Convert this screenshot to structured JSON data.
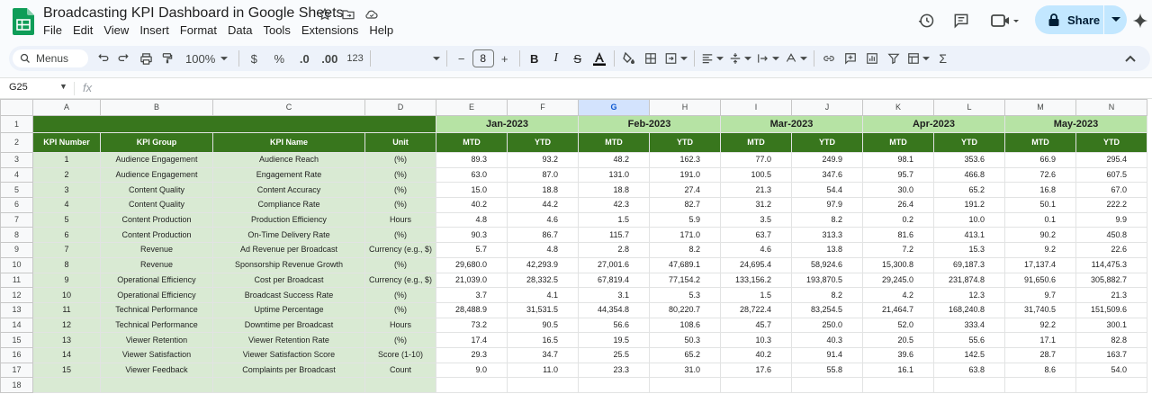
{
  "doc": {
    "title": "Broadcasting KPI Dashboard in Google Sheets",
    "menus": [
      "File",
      "Edit",
      "View",
      "Insert",
      "Format",
      "Data",
      "Tools",
      "Extensions",
      "Help"
    ],
    "share_label": "Share"
  },
  "toolbar": {
    "menus_label": "Menus",
    "zoom": "100%",
    "currency": "$",
    "percent": "%",
    "dec_decrease": ".0",
    "dec_increase": ".00",
    "number_format": "123",
    "font_size": "8",
    "minus": "−",
    "plus": "+"
  },
  "formula_bar": {
    "cell_ref": "G25",
    "fx": "fx",
    "value": ""
  },
  "colors": {
    "header_green": "#38761d",
    "month_green": "#b6e3a4",
    "label_green": "#d9ead3",
    "share_blue": "#c2e7ff"
  },
  "columns": [
    "A",
    "B",
    "C",
    "D",
    "E",
    "F",
    "G",
    "H",
    "I",
    "J",
    "K",
    "L",
    "M",
    "N"
  ],
  "selected_column": "G",
  "row_numbers": [
    "1",
    "2",
    "3",
    "4",
    "5",
    "6",
    "7",
    "8",
    "9",
    "10",
    "11",
    "12",
    "13",
    "14",
    "15",
    "16",
    "17",
    "18"
  ],
  "months": [
    "Jan-2023",
    "Feb-2023",
    "Mar-2023",
    "Apr-2023",
    "May-2023"
  ],
  "header": {
    "kpi_number": "KPI Number",
    "kpi_group": "KPI Group",
    "kpi_name": "KPI Name",
    "unit": "Unit",
    "mtd": "MTD",
    "ytd": "YTD"
  },
  "rows": [
    {
      "num": "1",
      "group": "Audience Engagement",
      "name": "Audience Reach",
      "unit": "(%)",
      "values": [
        "89.3",
        "93.2",
        "48.2",
        "162.3",
        "77.0",
        "249.9",
        "98.1",
        "353.6",
        "66.9",
        "295.4"
      ]
    },
    {
      "num": "2",
      "group": "Audience Engagement",
      "name": "Engagement Rate",
      "unit": "(%)",
      "values": [
        "63.0",
        "87.0",
        "131.0",
        "191.0",
        "100.5",
        "347.6",
        "95.7",
        "466.8",
        "72.6",
        "607.5"
      ]
    },
    {
      "num": "3",
      "group": "Content Quality",
      "name": "Content Accuracy",
      "unit": "(%)",
      "values": [
        "15.0",
        "18.8",
        "18.8",
        "27.4",
        "21.3",
        "54.4",
        "30.0",
        "65.2",
        "16.8",
        "67.0"
      ]
    },
    {
      "num": "4",
      "group": "Content Quality",
      "name": "Compliance Rate",
      "unit": "(%)",
      "values": [
        "40.2",
        "44.2",
        "42.3",
        "82.7",
        "31.2",
        "97.9",
        "26.4",
        "191.2",
        "50.1",
        "222.2"
      ]
    },
    {
      "num": "5",
      "group": "Content Production",
      "name": "Production Efficiency",
      "unit": "Hours",
      "values": [
        "4.8",
        "4.6",
        "1.5",
        "5.9",
        "3.5",
        "8.2",
        "0.2",
        "10.0",
        "0.1",
        "9.9"
      ]
    },
    {
      "num": "6",
      "group": "Content Production",
      "name": "On-Time Delivery Rate",
      "unit": "(%)",
      "values": [
        "90.3",
        "86.7",
        "115.7",
        "171.0",
        "63.7",
        "313.3",
        "81.6",
        "413.1",
        "90.2",
        "450.8"
      ]
    },
    {
      "num": "7",
      "group": "Revenue",
      "name": "Ad Revenue per Broadcast",
      "unit": "Currency (e.g., $)",
      "values": [
        "5.7",
        "4.8",
        "2.8",
        "8.2",
        "4.6",
        "13.8",
        "7.2",
        "15.3",
        "9.2",
        "22.6"
      ]
    },
    {
      "num": "8",
      "group": "Revenue",
      "name": "Sponsorship Revenue Growth",
      "unit": "(%)",
      "values": [
        "29,680.0",
        "42,293.9",
        "27,001.6",
        "47,689.1",
        "24,695.4",
        "58,924.6",
        "15,300.8",
        "69,187.3",
        "17,137.4",
        "114,475.3"
      ]
    },
    {
      "num": "9",
      "group": "Operational Efficiency",
      "name": "Cost per Broadcast",
      "unit": "Currency (e.g., $)",
      "values": [
        "21,039.0",
        "28,332.5",
        "67,819.4",
        "77,154.2",
        "133,156.2",
        "193,870.5",
        "29,245.0",
        "231,874.8",
        "91,650.6",
        "305,882.7"
      ]
    },
    {
      "num": "10",
      "group": "Operational Efficiency",
      "name": "Broadcast Success Rate",
      "unit": "(%)",
      "values": [
        "3.7",
        "4.1",
        "3.1",
        "5.3",
        "1.5",
        "8.2",
        "4.2",
        "12.3",
        "9.7",
        "21.3"
      ]
    },
    {
      "num": "11",
      "group": "Technical Performance",
      "name": "Uptime Percentage",
      "unit": "(%)",
      "values": [
        "28,488.9",
        "31,531.5",
        "44,354.8",
        "80,220.7",
        "28,722.4",
        "83,254.5",
        "21,464.7",
        "168,240.8",
        "31,740.5",
        "151,509.6"
      ]
    },
    {
      "num": "12",
      "group": "Technical Performance",
      "name": "Downtime per Broadcast",
      "unit": "Hours",
      "values": [
        "73.2",
        "90.5",
        "56.6",
        "108.6",
        "45.7",
        "250.0",
        "52.0",
        "333.4",
        "92.2",
        "300.1"
      ]
    },
    {
      "num": "13",
      "group": "Viewer Retention",
      "name": "Viewer Retention Rate",
      "unit": "(%)",
      "values": [
        "17.4",
        "16.5",
        "19.5",
        "50.3",
        "10.3",
        "40.3",
        "20.5",
        "55.6",
        "17.1",
        "82.8"
      ]
    },
    {
      "num": "14",
      "group": "Viewer Satisfaction",
      "name": "Viewer Satisfaction Score",
      "unit": "Score (1-10)",
      "values": [
        "29.3",
        "34.7",
        "25.5",
        "65.2",
        "40.2",
        "91.4",
        "39.6",
        "142.5",
        "28.7",
        "163.7"
      ]
    },
    {
      "num": "15",
      "group": "Viewer Feedback",
      "name": "Complaints per Broadcast",
      "unit": "Count",
      "values": [
        "9.0",
        "11.0",
        "23.3",
        "31.0",
        "17.6",
        "55.8",
        "16.1",
        "63.8",
        "8.6",
        "54.0"
      ]
    }
  ]
}
